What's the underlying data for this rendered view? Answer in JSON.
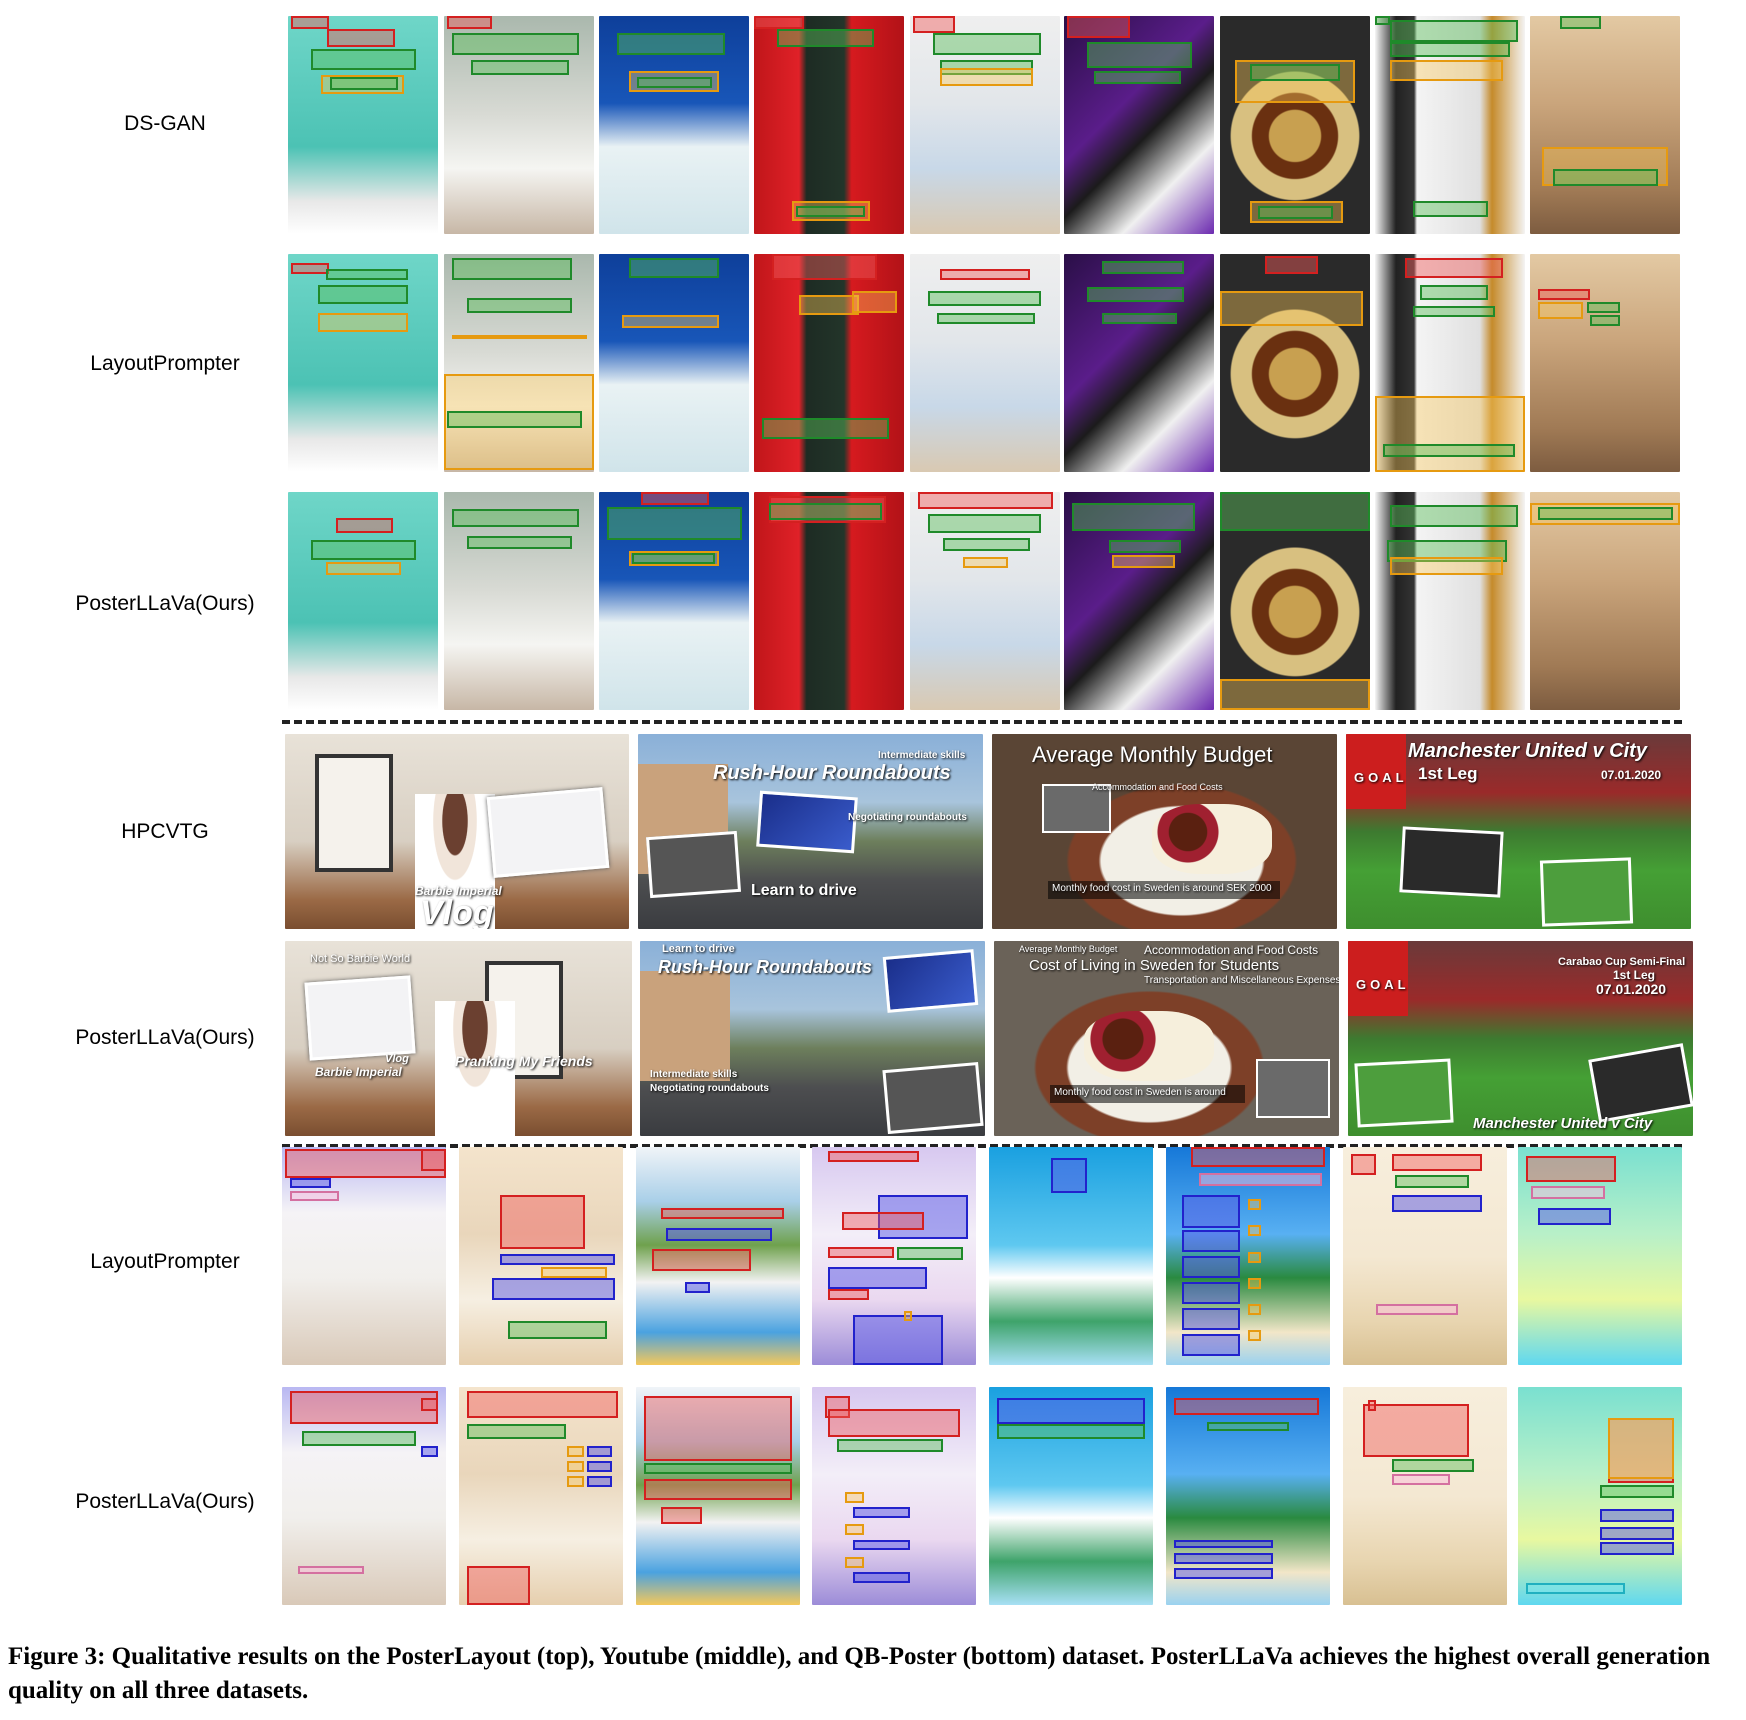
{
  "row_labels": {
    "dsgan": "DS-GAN",
    "layoutprompter_1": "LayoutPrompter",
    "posterllava_1": "PosterLLaVa(Ours)",
    "hpcvtg": "HPCVTG",
    "posterllava_2": "PosterLLaVa(Ours)",
    "layoutprompter_2": "LayoutPrompter",
    "posterllava_3": "PosterLLaVa(Ours)"
  },
  "youtube_texts": {
    "hp1": [
      "Barbie Imperial",
      "Vlog"
    ],
    "hp2": [
      "Intermediate skills",
      "Rush-Hour Roundabouts",
      "Negotiating roundabouts",
      "Learn to drive"
    ],
    "hp3": [
      "Average Monthly Budget",
      "Accommodation and Food Costs",
      "Monthly food cost in Sweden is around SEK 2000"
    ],
    "hp4": [
      "Manchester United v City",
      "1st Leg",
      "07.01.2020",
      "GOAL"
    ],
    "pl1": [
      "Not So Barbie World",
      "Vlog",
      "Barbie Imperial",
      "Pranking My Friends"
    ],
    "pl2": [
      "Learn to drive",
      "Rush-Hour Roundabouts",
      "Intermediate skills",
      "Negotiating roundabouts"
    ],
    "pl3": [
      "Average Monthly Budget",
      "Accommodation and Food Costs",
      "Cost of Living in Sweden for Students",
      "Transportation and Miscellaneous Expenses",
      "Monthly food cost in Sweden is around"
    ],
    "pl4": [
      "Carabao Cup Semi-Final",
      "1st Leg",
      "07.01.2020",
      "GOAL",
      "Manchester United v City"
    ]
  },
  "colors": {
    "text_box": "#d42020",
    "logo_box": "#1f8a2a",
    "underlay_box": "#e69a10",
    "embellishment_box": "#2222cc"
  },
  "caption": "Figure 3: Qualitative results on the PosterLayout (top), Youtube (middle), and QB-Poster (bottom) dataset. PosterLLaVa achieves the highest overall generation quality on all three datasets."
}
